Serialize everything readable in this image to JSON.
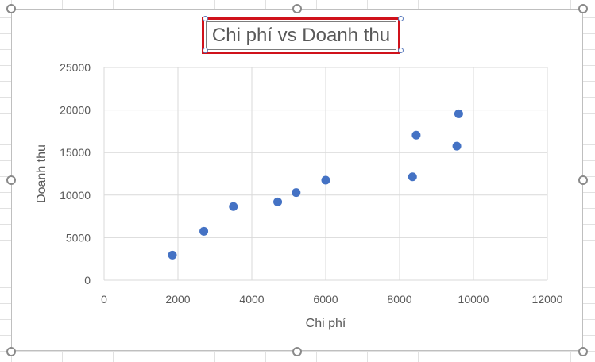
{
  "chart_data": {
    "type": "scatter",
    "title": "Chi phí vs Doanh thu",
    "xlabel": "Chi phí",
    "ylabel": "Doanh thu",
    "xlim": [
      0,
      12000
    ],
    "ylim": [
      0,
      25000
    ],
    "x_ticks": [
      0,
      2000,
      4000,
      6000,
      8000,
      10000,
      12000
    ],
    "y_ticks": [
      0,
      5000,
      10000,
      15000,
      20000,
      25000
    ],
    "grid": true,
    "legend": "none",
    "marker_color": "#4472c4",
    "series": [
      {
        "points": [
          {
            "x": 1850,
            "y": 2950
          },
          {
            "x": 2700,
            "y": 5750
          },
          {
            "x": 3500,
            "y": 8650
          },
          {
            "x": 4700,
            "y": 9200
          },
          {
            "x": 5200,
            "y": 10300
          },
          {
            "x": 6000,
            "y": 11750
          },
          {
            "x": 8350,
            "y": 12150
          },
          {
            "x": 8450,
            "y": 17050
          },
          {
            "x": 9550,
            "y": 15750
          },
          {
            "x": 9600,
            "y": 19550
          }
        ]
      }
    ]
  }
}
